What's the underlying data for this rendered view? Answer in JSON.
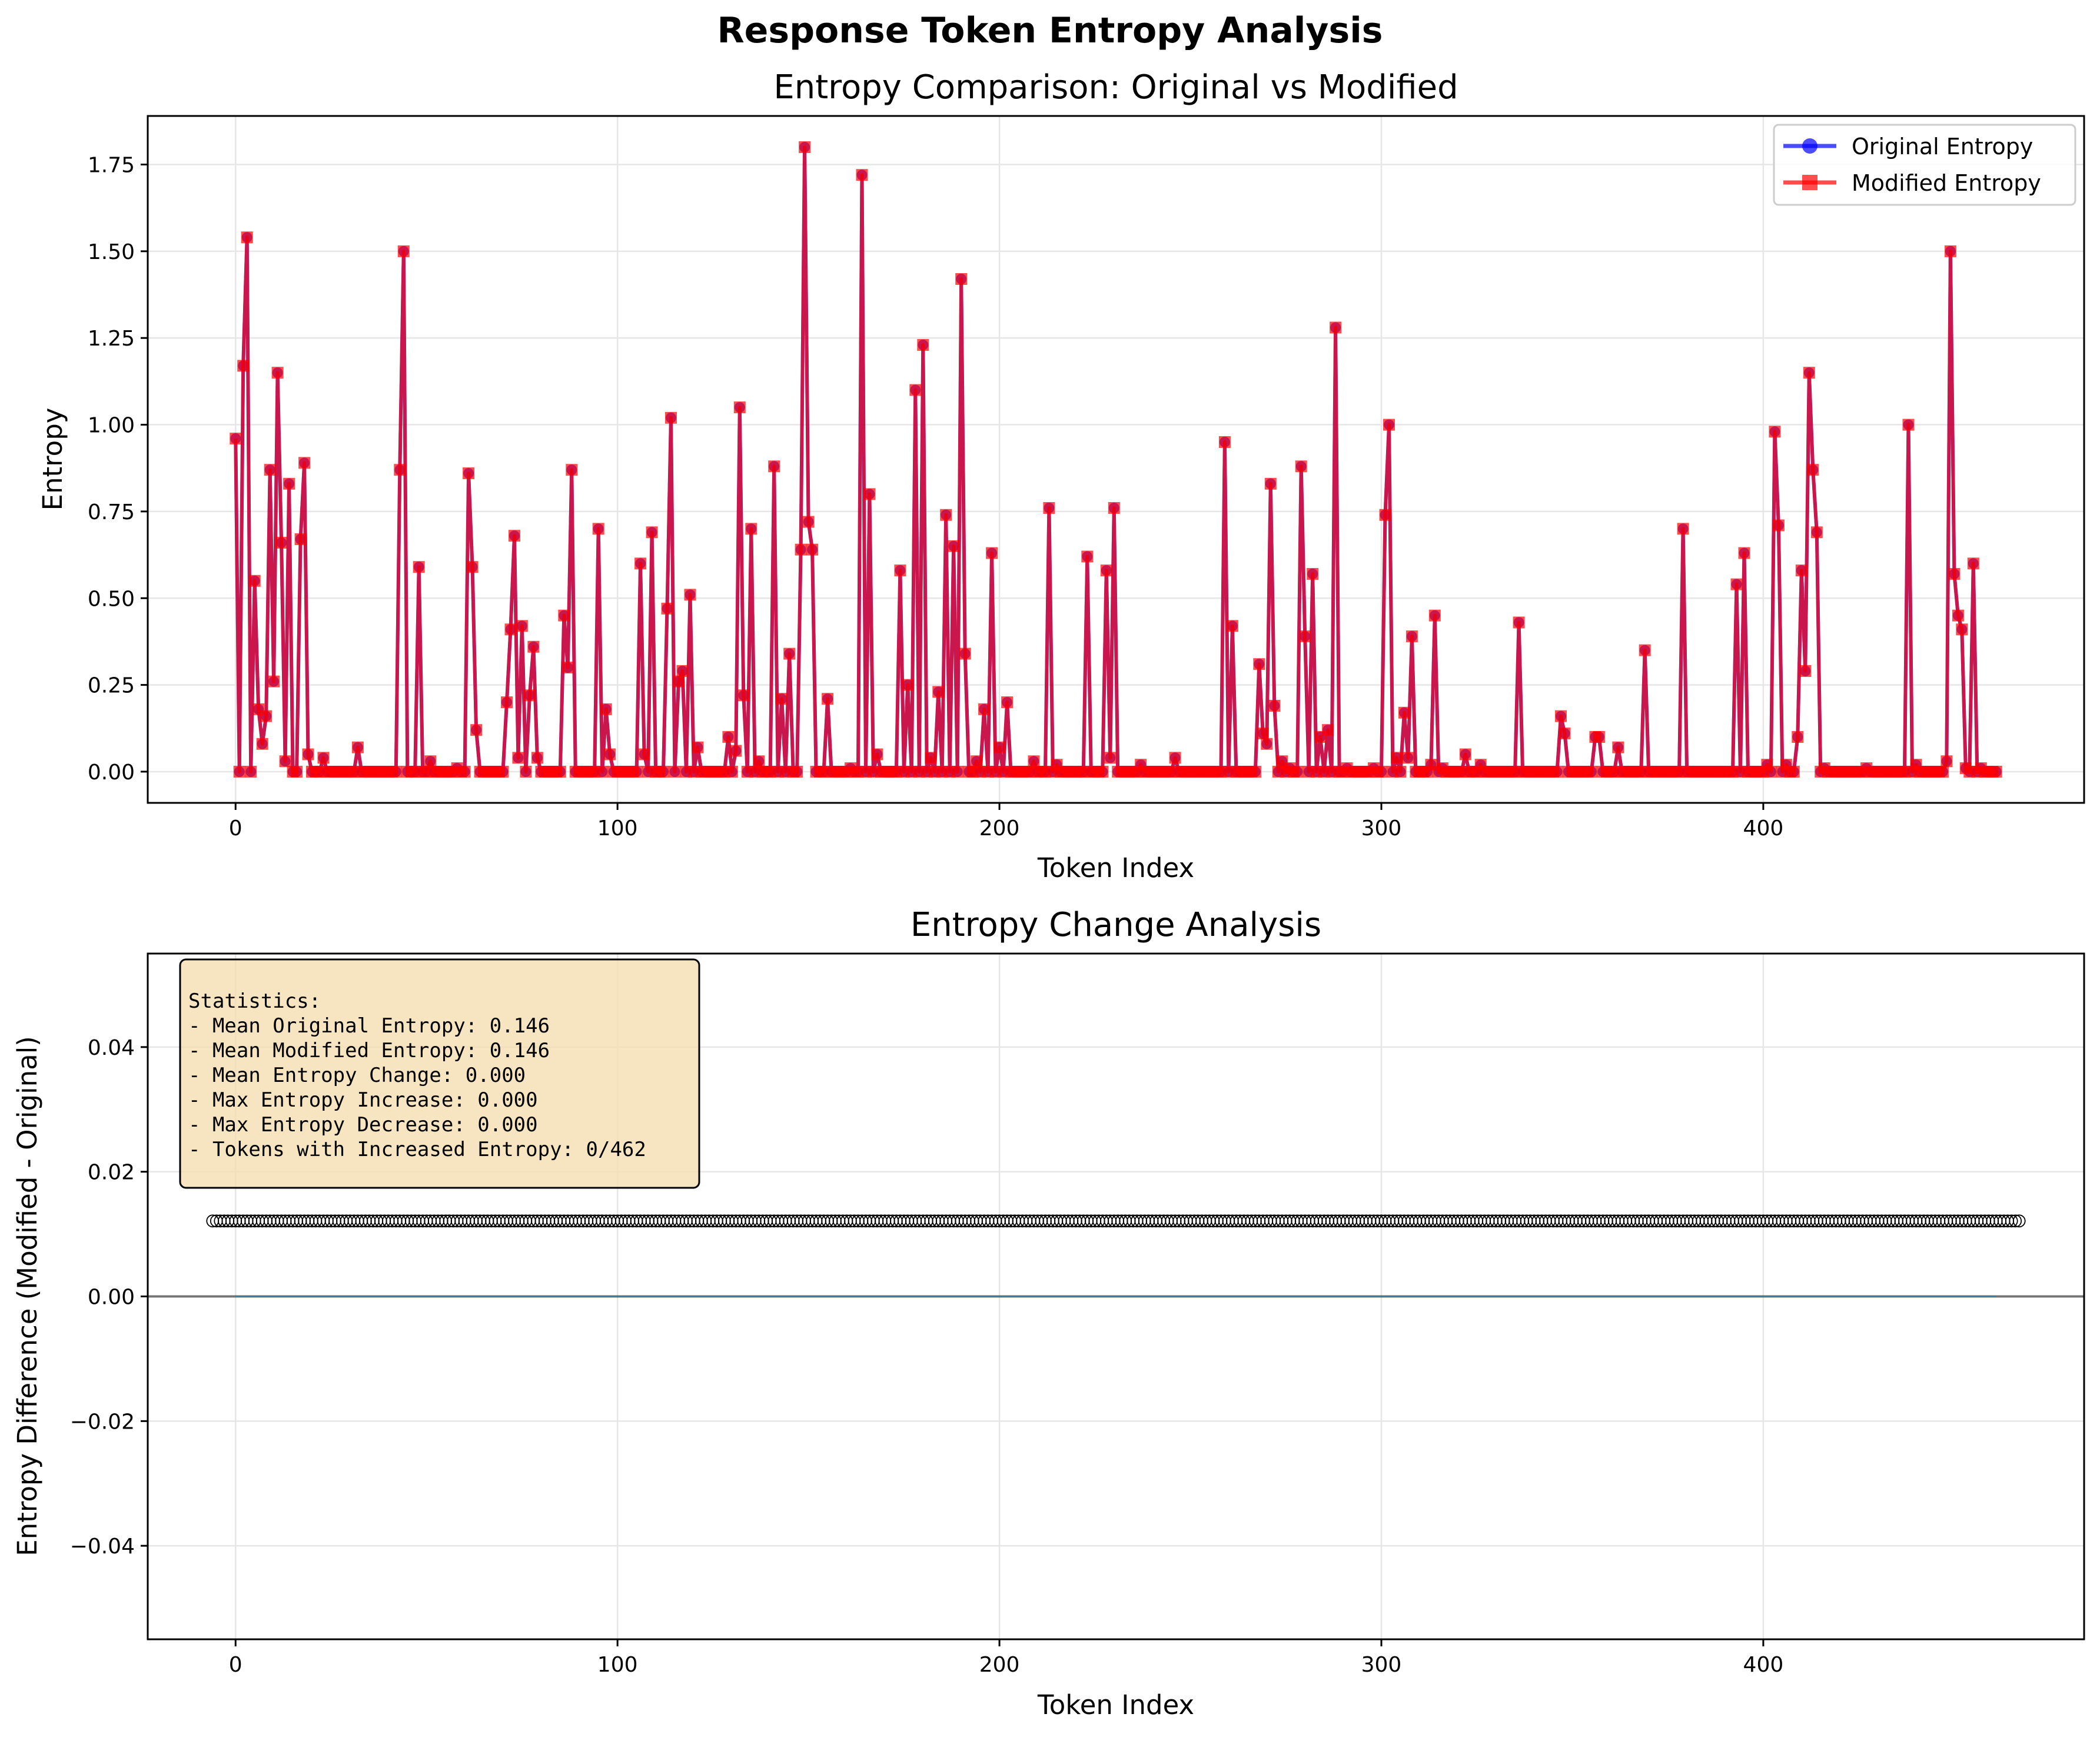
{
  "suptitle": "Response Token Entropy Analysis",
  "colors": {
    "original": "#0000ff",
    "modified": "#ff0000",
    "stats_box_fill": "#f5deb3",
    "grid": "#e6e6e6"
  },
  "chart_data": [
    {
      "type": "line",
      "title": "Entropy Comparison: Original vs Modified",
      "xlabel": "Token Index",
      "ylabel": "Entropy",
      "xlim": [
        -23,
        484
      ],
      "ylim": [
        -0.09,
        1.89
      ],
      "xticks": [
        0,
        100,
        200,
        300,
        400
      ],
      "xtick_labels": [
        "0",
        "100",
        "200",
        "300",
        "400"
      ],
      "yticks": [
        0,
        0.25,
        0.5,
        0.75,
        1.0,
        1.25,
        1.5,
        1.75
      ],
      "ytick_labels": [
        "0.00",
        "0.25",
        "0.50",
        "0.75",
        "1.00",
        "1.25",
        "1.50",
        "1.75"
      ],
      "grid": true,
      "legend_position": "upper right",
      "n_tokens": 462,
      "peaks": [
        [
          0,
          0.96
        ],
        [
          2,
          1.17
        ],
        [
          3,
          1.54
        ],
        [
          5,
          0.55
        ],
        [
          6,
          0.18
        ],
        [
          7,
          0.08
        ],
        [
          8,
          0.16
        ],
        [
          9,
          0.87
        ],
        [
          10,
          0.26
        ],
        [
          11,
          1.15
        ],
        [
          12,
          0.66
        ],
        [
          13,
          0.03
        ],
        [
          14,
          0.83
        ],
        [
          17,
          0.67
        ],
        [
          18,
          0.89
        ],
        [
          19,
          0.05
        ],
        [
          23,
          0.04
        ],
        [
          32,
          0.07
        ],
        [
          43,
          0.87
        ],
        [
          44,
          1.5
        ],
        [
          48,
          0.59
        ],
        [
          51,
          0.03
        ],
        [
          58,
          0.01
        ],
        [
          61,
          0.86
        ],
        [
          62,
          0.59
        ],
        [
          63,
          0.12
        ],
        [
          71,
          0.2
        ],
        [
          72,
          0.41
        ],
        [
          73,
          0.68
        ],
        [
          74,
          0.04
        ],
        [
          75,
          0.42
        ],
        [
          77,
          0.22
        ],
        [
          78,
          0.36
        ],
        [
          79,
          0.04
        ],
        [
          86,
          0.45
        ],
        [
          87,
          0.3
        ],
        [
          88,
          0.87
        ],
        [
          95,
          0.7
        ],
        [
          97,
          0.18
        ],
        [
          98,
          0.05
        ],
        [
          106,
          0.6
        ],
        [
          107,
          0.05
        ],
        [
          109,
          0.69
        ],
        [
          113,
          0.47
        ],
        [
          114,
          1.02
        ],
        [
          116,
          0.26
        ],
        [
          117,
          0.29
        ],
        [
          119,
          0.51
        ],
        [
          121,
          0.07
        ],
        [
          129,
          0.1
        ],
        [
          131,
          0.06
        ],
        [
          132,
          1.05
        ],
        [
          133,
          0.22
        ],
        [
          135,
          0.7
        ],
        [
          137,
          0.03
        ],
        [
          141,
          0.88
        ],
        [
          143,
          0.21
        ],
        [
          145,
          0.34
        ],
        [
          148,
          0.64
        ],
        [
          149,
          1.8
        ],
        [
          150,
          0.72
        ],
        [
          151,
          0.64
        ],
        [
          155,
          0.21
        ],
        [
          161,
          0.01
        ],
        [
          164,
          1.72
        ],
        [
          166,
          0.8
        ],
        [
          168,
          0.05
        ],
        [
          174,
          0.58
        ],
        [
          176,
          0.25
        ],
        [
          178,
          1.1
        ],
        [
          180,
          1.23
        ],
        [
          182,
          0.04
        ],
        [
          184,
          0.23
        ],
        [
          186,
          0.74
        ],
        [
          188,
          0.65
        ],
        [
          190,
          1.42
        ],
        [
          191,
          0.34
        ],
        [
          194,
          0.03
        ],
        [
          196,
          0.18
        ],
        [
          198,
          0.63
        ],
        [
          200,
          0.07
        ],
        [
          202,
          0.2
        ],
        [
          209,
          0.03
        ],
        [
          213,
          0.76
        ],
        [
          215,
          0.02
        ],
        [
          223,
          0.62
        ],
        [
          228,
          0.58
        ],
        [
          229,
          0.04
        ],
        [
          230,
          0.76
        ],
        [
          237,
          0.02
        ],
        [
          246,
          0.04
        ],
        [
          259,
          0.95
        ],
        [
          261,
          0.42
        ],
        [
          268,
          0.31
        ],
        [
          269,
          0.11
        ],
        [
          270,
          0.08
        ],
        [
          271,
          0.83
        ],
        [
          272,
          0.19
        ],
        [
          274,
          0.03
        ],
        [
          276,
          0.01
        ],
        [
          279,
          0.88
        ],
        [
          280,
          0.39
        ],
        [
          282,
          0.57
        ],
        [
          284,
          0.1
        ],
        [
          286,
          0.12
        ],
        [
          288,
          1.28
        ],
        [
          291,
          0.01
        ],
        [
          298,
          0.01
        ],
        [
          301,
          0.74
        ],
        [
          302,
          1.0
        ],
        [
          304,
          0.04
        ],
        [
          306,
          0.17
        ],
        [
          307,
          0.04
        ],
        [
          308,
          0.39
        ],
        [
          313,
          0.02
        ],
        [
          314,
          0.45
        ],
        [
          316,
          0.01
        ],
        [
          322,
          0.05
        ],
        [
          326,
          0.02
        ],
        [
          336,
          0.43
        ],
        [
          347,
          0.16
        ],
        [
          348,
          0.11
        ],
        [
          356,
          0.1
        ],
        [
          357,
          0.1
        ],
        [
          362,
          0.07
        ],
        [
          369,
          0.35
        ],
        [
          379,
          0.7
        ],
        [
          393,
          0.54
        ],
        [
          395,
          0.63
        ],
        [
          401,
          0.02
        ],
        [
          403,
          0.98
        ],
        [
          404,
          0.71
        ],
        [
          406,
          0.02
        ],
        [
          409,
          0.1
        ],
        [
          410,
          0.58
        ],
        [
          411,
          0.29
        ],
        [
          412,
          1.15
        ],
        [
          413,
          0.87
        ],
        [
          414,
          0.69
        ],
        [
          416,
          0.01
        ],
        [
          427,
          0.01
        ],
        [
          438,
          1.0
        ],
        [
          440,
          0.02
        ],
        [
          448,
          0.03
        ],
        [
          449,
          1.5
        ],
        [
          450,
          0.57
        ],
        [
          451,
          0.45
        ],
        [
          452,
          0.41
        ],
        [
          453,
          0.01
        ],
        [
          455,
          0.6
        ],
        [
          457,
          0.01
        ]
      ],
      "series": [
        {
          "name": "Original Entropy",
          "marker": "circle",
          "color": "#0000ff",
          "alpha": 0.7
        },
        {
          "name": "Modified Entropy",
          "marker": "square",
          "color": "#ff0000",
          "alpha": 0.7
        }
      ]
    },
    {
      "type": "scatter",
      "title": "Entropy Change Analysis",
      "xlabel": "Token Index",
      "ylabel": "Entropy Difference (Modified - Original)",
      "xlim": [
        -23,
        484
      ],
      "ylim": [
        -0.055,
        0.055
      ],
      "xticks": [
        0,
        100,
        200,
        300,
        400
      ],
      "xtick_labels": [
        "0",
        "100",
        "200",
        "300",
        "400"
      ],
      "yticks": [
        -0.04,
        -0.02,
        0.0,
        0.02,
        0.04
      ],
      "ytick_labels": [
        "−0.04",
        "−0.02",
        "0.00",
        "0.02",
        "0.04"
      ],
      "grid": true,
      "n_tokens": 462,
      "difference_values": "all 0.000",
      "reference_line_y": 0
    }
  ],
  "stats_box": {
    "lines": [
      "Statistics:",
      "- Mean Original Entropy: 0.146",
      "- Mean Modified Entropy: 0.146",
      "- Mean Entropy Change: 0.000",
      "- Max Entropy Increase: 0.000",
      "- Max Entropy Decrease: 0.000",
      "- Tokens with Increased Entropy: 0/462"
    ]
  }
}
